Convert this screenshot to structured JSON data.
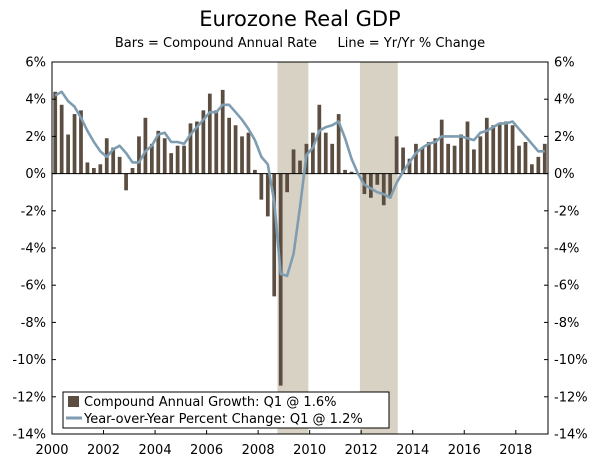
{
  "chart_data": {
    "type": "bar",
    "title": "Eurozone Real GDP",
    "subtitle": "Bars = Compound Annual Rate     Line = Yr/Yr % Change",
    "xlabel": "",
    "ylabel": "",
    "ylim": [
      -14,
      6
    ],
    "y_ticks": [
      6,
      4,
      2,
      0,
      -2,
      -4,
      -6,
      -8,
      -10,
      -12,
      -14
    ],
    "y_tick_labels": [
      "6%",
      "4%",
      "2%",
      "0%",
      "-2%",
      "-4%",
      "-6%",
      "-8%",
      "-10%",
      "-12%",
      "-14%"
    ],
    "x_range": [
      2000.0,
      2019.25
    ],
    "x_ticks": [
      2000,
      2002,
      2004,
      2006,
      2008,
      2010,
      2012,
      2014,
      2016,
      2018
    ],
    "x_tick_labels": [
      "2000",
      "2002",
      "2004",
      "2006",
      "2008",
      "2010",
      "2012",
      "2014",
      "2016",
      "2018"
    ],
    "x_start": "2000 Q1",
    "x_frequency": "quarterly",
    "recession_shading": [
      {
        "start": 2008.75,
        "end": 2009.95
      },
      {
        "start": 2011.95,
        "end": 2013.42
      }
    ],
    "series": [
      {
        "name": "Compound Annual Growth: Q1 @ 1.6%",
        "type": "bar",
        "color": "#5b4d40",
        "values": [
          4.4,
          3.7,
          2.1,
          3.2,
          3.4,
          0.6,
          0.3,
          0.5,
          1.9,
          1.4,
          0.9,
          -0.9,
          0.3,
          2.0,
          3.0,
          1.6,
          2.3,
          1.9,
          1.1,
          1.5,
          1.5,
          2.7,
          2.8,
          3.4,
          4.3,
          3.4,
          4.5,
          3.0,
          2.6,
          2.0,
          2.2,
          0.2,
          -1.4,
          -2.3,
          -6.6,
          -11.4,
          -1.0,
          1.3,
          0.7,
          1.6,
          2.2,
          3.7,
          2.2,
          1.6,
          3.2,
          0.2,
          0.1,
          0.0,
          -1.1,
          -1.3,
          -0.6,
          -1.7,
          -1.3,
          2.0,
          1.4,
          0.8,
          1.6,
          1.4,
          1.7,
          1.9,
          2.9,
          1.6,
          1.5,
          2.1,
          2.8,
          1.3,
          2.0,
          3.0,
          2.6,
          2.7,
          2.8,
          2.6,
          1.5,
          1.7,
          0.5,
          0.9,
          1.6
        ]
      },
      {
        "name": "Year-over-Year Percent Change: Q1 @ 1.2%",
        "type": "line",
        "color": "#7f9db1",
        "values": [
          4.2,
          4.4,
          3.9,
          3.6,
          3.0,
          2.3,
          1.7,
          1.2,
          0.9,
          1.3,
          1.5,
          1.1,
          0.6,
          0.6,
          1.2,
          1.5,
          2.1,
          2.2,
          1.7,
          1.7,
          1.6,
          2.1,
          2.5,
          2.9,
          3.3,
          3.3,
          3.7,
          3.7,
          3.3,
          2.9,
          2.4,
          1.8,
          0.9,
          0.5,
          -1.5,
          -5.4,
          -5.5,
          -4.3,
          -1.8,
          1.0,
          1.4,
          2.3,
          2.5,
          2.6,
          2.8,
          1.9,
          0.8,
          0.0,
          -0.6,
          -0.8,
          -1.0,
          -1.1,
          -1.3,
          -0.5,
          0.1,
          0.6,
          1.1,
          1.4,
          1.6,
          1.7,
          2.0,
          2.0,
          2.0,
          2.0,
          1.9,
          1.8,
          2.2,
          2.3,
          2.5,
          2.7,
          2.7,
          2.8,
          2.4,
          2.0,
          1.6,
          1.2,
          1.2
        ]
      }
    ]
  },
  "legend": {
    "bar_label": "Compound Annual Growth: Q1 @ 1.6%",
    "line_label": "Year-over-Year Percent Change: Q1 @ 1.2%"
  },
  "colors": {
    "bar": "#5b4d40",
    "line": "#7f9db1",
    "recession": "#d8d2c4"
  }
}
